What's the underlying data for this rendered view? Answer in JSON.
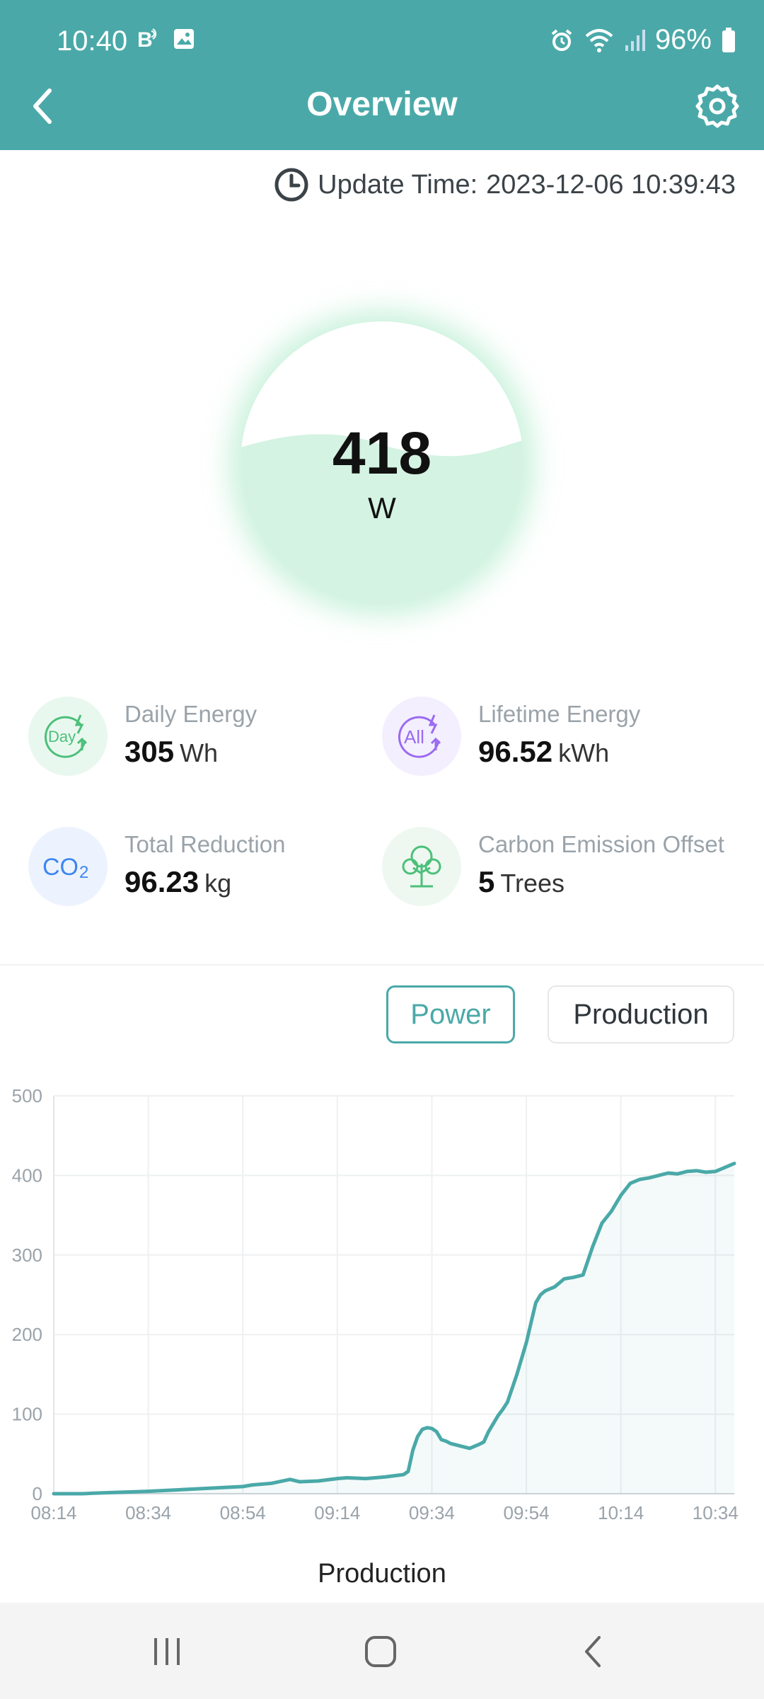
{
  "status_bar": {
    "time": "10:40",
    "battery": "96%"
  },
  "header": {
    "title": "Overview"
  },
  "update": {
    "label": "Update Time:",
    "value": "2023-12-06 10:39:43"
  },
  "gauge": {
    "value": "418",
    "unit": "W"
  },
  "stats": [
    {
      "label": "Daily Energy",
      "value": "305",
      "unit": "Wh",
      "icon": "day-energy-icon",
      "icon_text": "Day"
    },
    {
      "label": "Lifetime Energy",
      "value": "96.52",
      "unit": "kWh",
      "icon": "all-energy-icon",
      "icon_text": "All"
    },
    {
      "label": "Total Reduction",
      "value": "96.23",
      "unit": "kg",
      "icon": "co2-icon",
      "icon_text": "CO2"
    },
    {
      "label": "Carbon Emission Offset",
      "value": "5",
      "unit": "Trees",
      "icon": "tree-icon",
      "icon_text": ""
    }
  ],
  "toggles": {
    "power": "Power",
    "production": "Production"
  },
  "chart_caption": "Production",
  "colors": {
    "header": "#4aa9a8",
    "line": "#4aa9a8",
    "gauge_fill": "#d4f3e2"
  },
  "chart_data": {
    "type": "area",
    "title": "",
    "xlabel": "",
    "ylabel": "",
    "ylim": [
      0,
      500
    ],
    "yticks": [
      0,
      100,
      200,
      300,
      400,
      500
    ],
    "xticks": [
      "08:14",
      "08:34",
      "08:54",
      "09:14",
      "09:34",
      "09:54",
      "10:14",
      "10:34"
    ],
    "x_start": "08:14",
    "x_end": "10:38",
    "grid": true,
    "series": [
      {
        "x": [
          "08:14",
          "08:20",
          "08:24",
          "08:34",
          "08:44",
          "08:54",
          "08:56",
          "09:00",
          "09:04",
          "09:06",
          "09:10",
          "09:14",
          "09:16",
          "09:20",
          "09:24",
          "09:28",
          "09:29",
          "09:30",
          "09:31",
          "09:32",
          "09:33",
          "09:34",
          "09:35",
          "09:36",
          "09:37",
          "09:38",
          "09:40",
          "09:42",
          "09:44",
          "09:45",
          "09:46",
          "09:48",
          "09:49",
          "09:50",
          "09:52",
          "09:54",
          "09:55",
          "09:56",
          "09:57",
          "09:58",
          "10:00",
          "10:02",
          "10:04",
          "10:06",
          "10:08",
          "10:10",
          "10:12",
          "10:14",
          "10:16",
          "10:18",
          "10:20",
          "10:22",
          "10:24",
          "10:26",
          "10:28",
          "10:30",
          "10:32",
          "10:34",
          "10:36",
          "10:38"
        ],
        "y": [
          0,
          0,
          1,
          3,
          6,
          9,
          11,
          13,
          18,
          15,
          16,
          19,
          20,
          19,
          21,
          24,
          28,
          55,
          72,
          81,
          83,
          82,
          78,
          68,
          66,
          63,
          60,
          57,
          62,
          65,
          78,
          98,
          106,
          115,
          150,
          190,
          215,
          240,
          250,
          255,
          260,
          270,
          272,
          275,
          310,
          340,
          355,
          375,
          390,
          395,
          397,
          400,
          403,
          402,
          405,
          406,
          404,
          405,
          410,
          415
        ]
      }
    ]
  }
}
